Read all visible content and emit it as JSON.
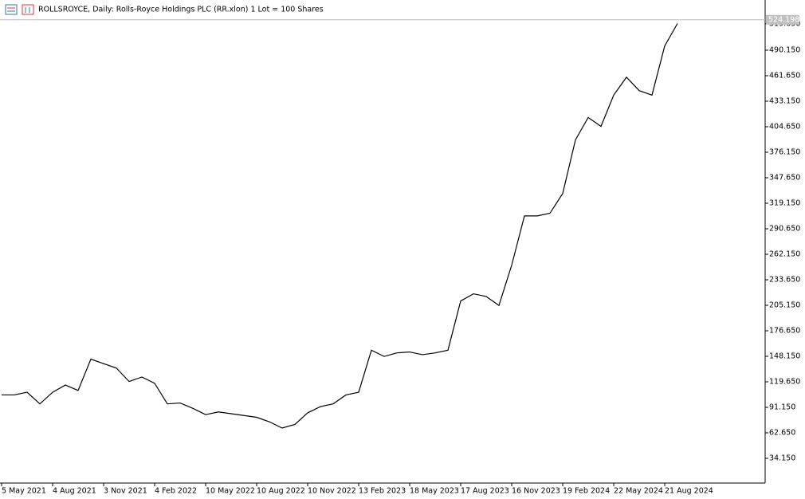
{
  "chart_data": {
    "type": "line",
    "title": "ROLLSROYCE, Daily:  Rolls-Royce Holdings PLC (RR.xlon) 1 Lot = 100 Shares",
    "categories": [
      "5 May 2021",
      null,
      null,
      null,
      "4 Aug 2021",
      null,
      null,
      null,
      "3 Nov 2021",
      null,
      null,
      null,
      "4 Feb 2022",
      null,
      null,
      null,
      "10 May 2022",
      null,
      null,
      null,
      "10 Aug 2022",
      null,
      null,
      null,
      "10 Nov 2022",
      null,
      null,
      null,
      "13 Feb 2023",
      null,
      null,
      null,
      "18 May 2023",
      null,
      null,
      null,
      "17 Aug 2023",
      null,
      null,
      null,
      "16 Nov 2023",
      null,
      null,
      null,
      "19 Feb 2024",
      null,
      null,
      null,
      "22 May 2024",
      null,
      null,
      null,
      "21 Aug 2024",
      null
    ],
    "values": [
      105,
      105,
      108,
      95,
      108,
      116,
      110,
      145,
      140,
      135,
      120,
      125,
      118,
      95,
      96,
      90,
      83,
      86,
      84,
      82,
      80,
      75,
      68,
      72,
      85,
      92,
      95,
      105,
      108,
      155,
      148,
      152,
      153,
      150,
      152,
      155,
      210,
      218,
      215,
      205,
      250,
      305,
      305,
      308,
      330,
      390,
      415,
      405,
      440,
      460,
      445,
      440,
      495,
      520
    ],
    "color": "#000000",
    "last_price": 524.198,
    "ylim": [
      6.54,
      546.26
    ],
    "yticks": [
      {
        "value": 34.15,
        "label": "34.150"
      },
      {
        "value": 62.65,
        "label": "62.650"
      },
      {
        "value": 91.15,
        "label": "91.150"
      },
      {
        "value": 119.65,
        "label": "119.650"
      },
      {
        "value": 148.15,
        "label": "148.150"
      },
      {
        "value": 176.65,
        "label": "176.650"
      },
      {
        "value": 205.15,
        "label": "205.150"
      },
      {
        "value": 233.65,
        "label": "233.650"
      },
      {
        "value": 262.15,
        "label": "262.150"
      },
      {
        "value": 290.65,
        "label": "290.650"
      },
      {
        "value": 319.15,
        "label": "319.150"
      },
      {
        "value": 347.65,
        "label": "347.650"
      },
      {
        "value": 376.15,
        "label": "376.150"
      },
      {
        "value": 404.65,
        "label": "404.650"
      },
      {
        "value": 433.15,
        "label": "433.150"
      },
      {
        "value": 461.65,
        "label": "461.650"
      },
      {
        "value": 490.15,
        "label": "490.150"
      },
      {
        "value": 519.65,
        "label": "519.650"
      }
    ],
    "grid": false
  }
}
